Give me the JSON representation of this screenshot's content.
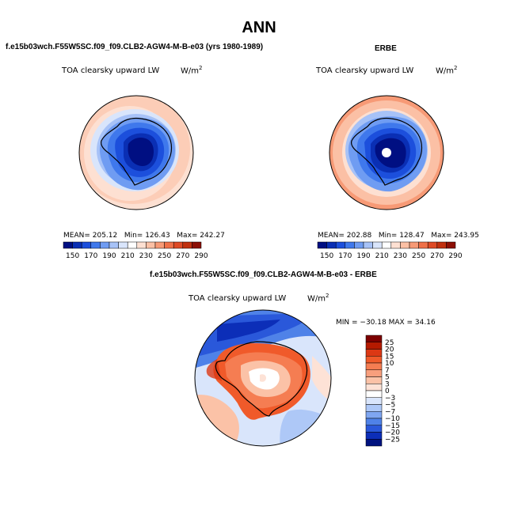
{
  "figure": {
    "title": "ANN"
  },
  "panels": {
    "model": {
      "case_title": "f.e15b03wch.F55W5SC.f09_f09.CLB2-AGW4-M-B-e03 (yrs 1980-1989)",
      "field_label": "TOA clearsky upward LW",
      "units_base": "W/m",
      "units_exp": "2",
      "mean_text": "MEAN= 205.12",
      "min_text": "Min= 126.43",
      "max_text": "Max= 242.27"
    },
    "obs": {
      "case_title": "ERBE",
      "field_label": "TOA clearsky upward LW",
      "units_base": "W/m",
      "units_exp": "2",
      "mean_text": "MEAN= 202.88",
      "min_text": "Min= 128.47",
      "max_text": "Max= 243.95"
    },
    "diff": {
      "case_title": "f.e15b03wch.F55W5SC.f09_f09.CLB2-AGW4-M-B-e03 - ERBE",
      "field_label": "TOA clearsky upward LW",
      "units_base": "W/m",
      "units_exp": "2",
      "minmax_text": "MIN = −30.18 MAX = 34.16"
    }
  },
  "colorbars": {
    "absolute": {
      "tick_labels": [
        "150",
        "170",
        "190",
        "210",
        "230",
        "250",
        "270",
        "290"
      ],
      "colors": [
        "#000f82",
        "#0a2fb4",
        "#1c4fdc",
        "#3f78ec",
        "#6f9cf2",
        "#a7c2f7",
        "#d9e5fb",
        "#ffffff",
        "#fde0d2",
        "#fbc0a5",
        "#f79a76",
        "#ef7048",
        "#de4a25",
        "#c0300f",
        "#8c0f05"
      ]
    },
    "difference": {
      "tick_labels": [
        "25",
        "20",
        "15",
        "10",
        "7",
        "5",
        "3",
        "0",
        "−3",
        "−5",
        "−7",
        "−10",
        "−15",
        "−20",
        "−25"
      ],
      "colors": [
        "#7d0000",
        "#b51a00",
        "#dc3814",
        "#f05a2a",
        "#f57d52",
        "#f89f7d",
        "#fbc2a7",
        "#fde2d6",
        "#ffffff",
        "#d9e5fb",
        "#aec8f7",
        "#7fa6f1",
        "#4f82e8",
        "#2a58da",
        "#0c2eb8",
        "#00127f"
      ]
    }
  },
  "chart_data": [
    {
      "type": "heatmap",
      "title": "TOA clearsky upward LW",
      "subtitle": "f.e15b03wch.F55W5SC.f09_f09.CLB2-AGW4-M-B-e03 (yrs 1980-1989)",
      "units": "W/m2",
      "projection": "south-polar-stereographic",
      "contour_levels": [
        150,
        160,
        170,
        180,
        190,
        200,
        210,
        220,
        230,
        240,
        250,
        260,
        270,
        280,
        290
      ],
      "mean": 205.12,
      "min": 126.43,
      "max": 242.27
    },
    {
      "type": "heatmap",
      "title": "TOA clearsky upward LW",
      "subtitle": "ERBE",
      "units": "W/m2",
      "projection": "south-polar-stereographic",
      "contour_levels": [
        150,
        160,
        170,
        180,
        190,
        200,
        210,
        220,
        230,
        240,
        250,
        260,
        270,
        280,
        290
      ],
      "mean": 202.88,
      "min": 128.47,
      "max": 243.95
    },
    {
      "type": "heatmap",
      "title": "TOA clearsky upward LW",
      "subtitle": "f.e15b03wch.F55W5SC.f09_f09.CLB2-AGW4-M-B-e03 - ERBE",
      "units": "W/m2",
      "projection": "south-polar-stereographic",
      "contour_levels": [
        -25,
        -20,
        -15,
        -10,
        -7,
        -5,
        -3,
        0,
        3,
        5,
        7,
        10,
        15,
        20,
        25
      ],
      "min": -30.18,
      "max": 34.16
    }
  ]
}
